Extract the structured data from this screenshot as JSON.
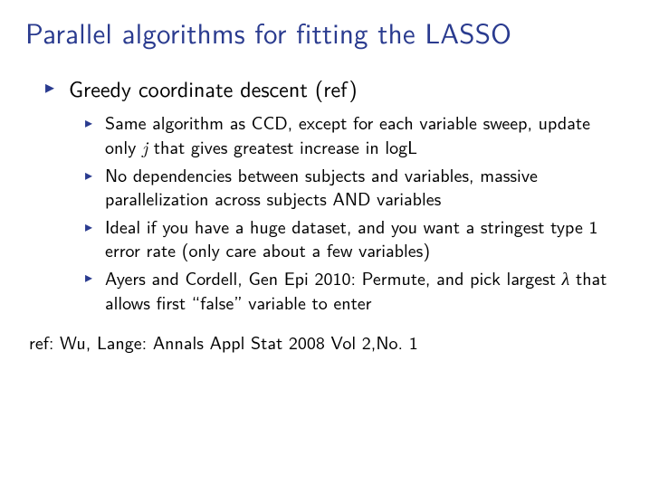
{
  "colors": {
    "title": "#2a3b8f",
    "bullet": "#2a3b8f",
    "text": "#000000",
    "background": "#ffffff"
  },
  "typography": {
    "title_fontsize": 31,
    "outer_item_fontsize": 24,
    "inner_item_fontsize": 20,
    "ref_fontsize": 20,
    "title_weight": 400
  },
  "title": "Parallel algorithms for fitting the LASSO",
  "outer_item": "Greedy coordinate descent (ref)",
  "inner_items": {
    "i0_a": "Same algorithm as CCD, except for each variable sweep, update only ",
    "i0_j": "j",
    "i0_b": " that gives greatest increase in logL",
    "i1": "No dependencies between subjects and variables, massive parallelization across subjects AND variables",
    "i2": "Ideal if you have a huge dataset, and you want a stringest type 1 error rate (only care about a few variables)",
    "i3_a": "Ayers and Cordell, Gen Epi 2010: Permute, and pick largest ",
    "i3_lambda": "λ",
    "i3_b": " that allows first “false” variable to enter"
  },
  "ref": "ref: Wu, Lange: Annals Appl Stat 2008 Vol 2,No. 1"
}
